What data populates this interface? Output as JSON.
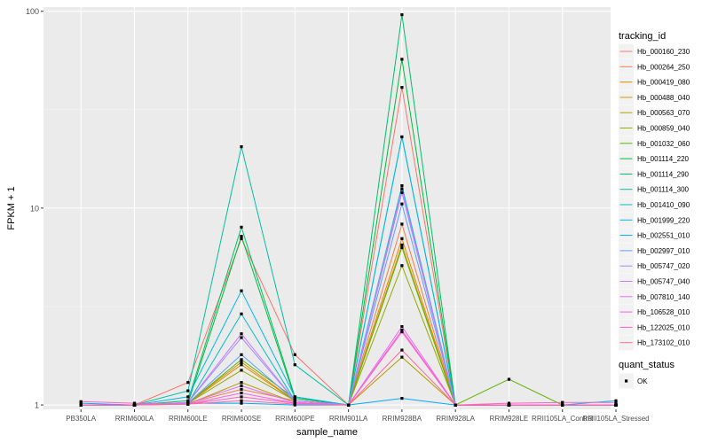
{
  "chart_data": {
    "type": "line",
    "xlabel": "sample_name",
    "ylabel": "FPKM + 1",
    "y_scale": "log10",
    "ylim": [
      0.95,
      105
    ],
    "y_ticks": [
      1,
      10,
      100
    ],
    "y_tick_labels": [
      "1",
      "10",
      "100"
    ],
    "categories": [
      "PB350LA",
      "RRIM600LA",
      "RRIM600LE",
      "RRIM600SE",
      "RRIM600PE",
      "RRIM901LA",
      "RRIM928BA",
      "RRIM928LA",
      "RRIM928LE",
      "RRII105LA_Control",
      "RRII105LA_Stressed"
    ],
    "legend": {
      "title": "tracking_id",
      "placement": "right",
      "status_title": "quant_status",
      "status_label": "OK"
    },
    "series": [
      {
        "name": "Hb_000160_230",
        "color": "#F8766D",
        "values": [
          1,
          1,
          1.3,
          7.0,
          1.8,
          1,
          41,
          1,
          1,
          1,
          1
        ]
      },
      {
        "name": "Hb_000264_250",
        "color": "#EF7F48",
        "values": [
          1,
          1,
          1.02,
          1.2,
          1.05,
          1,
          8.3,
          1,
          1,
          1,
          1
        ]
      },
      {
        "name": "Hb_000419_080",
        "color": "#E18A00",
        "values": [
          1,
          1,
          1.02,
          1.6,
          1.05,
          1,
          7.0,
          1,
          1,
          1,
          1
        ]
      },
      {
        "name": "Hb_000488_040",
        "color": "#CE9700",
        "values": [
          1,
          1,
          1.02,
          1.65,
          1.05,
          1,
          6.5,
          1,
          1,
          1,
          1
        ]
      },
      {
        "name": "Hb_000563_070",
        "color": "#B0A100",
        "values": [
          1,
          1,
          1.01,
          1.3,
          1.03,
          1,
          1.75,
          1,
          1,
          1,
          1
        ]
      },
      {
        "name": "Hb_000859_040",
        "color": "#93AA00",
        "values": [
          1,
          1,
          1.02,
          1.5,
          1.05,
          1,
          5.1,
          1,
          1,
          1,
          1
        ]
      },
      {
        "name": "Hb_001032_060",
        "color": "#5EB300",
        "values": [
          1,
          1,
          1.02,
          1.7,
          1.08,
          1,
          6.3,
          1,
          1.35,
          1,
          1
        ]
      },
      {
        "name": "Hb_001114_220",
        "color": "#00BA38",
        "values": [
          1,
          1,
          1.02,
          7.2,
          1.08,
          1,
          57,
          1,
          1,
          1,
          1
        ]
      },
      {
        "name": "Hb_001114_290",
        "color": "#00BE6C",
        "values": [
          1,
          1,
          1.05,
          8.0,
          1.1,
          1,
          96,
          1,
          1,
          1,
          1
        ]
      },
      {
        "name": "Hb_001114_300",
        "color": "#00C0A0",
        "values": [
          1,
          1,
          1.18,
          20.5,
          1.6,
          1,
          23,
          1,
          1,
          1,
          1
        ]
      },
      {
        "name": "Hb_001410_090",
        "color": "#00BFC4",
        "values": [
          1,
          1,
          1.02,
          2.9,
          1.05,
          1,
          13,
          1,
          1,
          1,
          1
        ]
      },
      {
        "name": "Hb_001999_220",
        "color": "#00B8E7",
        "values": [
          1,
          1,
          1.1,
          3.8,
          1.1,
          1,
          23,
          1,
          1,
          1,
          1.05
        ]
      },
      {
        "name": "Hb_002551_010",
        "color": "#00A9FF",
        "values": [
          1.02,
          1,
          1.02,
          1.02,
          1,
          1,
          1.08,
          1,
          1,
          1,
          1
        ]
      },
      {
        "name": "Hb_002997_010",
        "color": "#619CFF",
        "values": [
          1,
          1,
          1.02,
          1.8,
          1.05,
          1,
          10.5,
          1,
          1,
          1,
          1
        ]
      },
      {
        "name": "Hb_005747_020",
        "color": "#9F8CFF",
        "values": [
          1,
          1,
          1.03,
          2.2,
          1.05,
          1,
          12,
          1,
          1,
          1,
          1
        ]
      },
      {
        "name": "Hb_005747_040",
        "color": "#C77CFF",
        "values": [
          1,
          1,
          1.03,
          2.3,
          1.05,
          1,
          12.5,
          1,
          1,
          1,
          1
        ]
      },
      {
        "name": "Hb_007810_140",
        "color": "#E76BF3",
        "values": [
          1,
          1,
          1.02,
          1.25,
          1.03,
          1,
          2.5,
          1,
          1,
          1,
          1
        ]
      },
      {
        "name": "Hb_106528_010",
        "color": "#F863DF",
        "values": [
          1,
          1,
          1.01,
          1.15,
          1.02,
          1,
          2.4,
          1,
          1,
          1,
          1
        ]
      },
      {
        "name": "Hb_122025_010",
        "color": "#FF61C3",
        "values": [
          1.04,
          1.02,
          1.01,
          1.1,
          1.02,
          1,
          2.35,
          1,
          1.02,
          1.03,
          1.03
        ]
      },
      {
        "name": "Hb_173102_010",
        "color": "#FF689F",
        "values": [
          1,
          1,
          1.01,
          1.05,
          1.01,
          1,
          1.9,
          1,
          1,
          1,
          1
        ]
      }
    ]
  }
}
